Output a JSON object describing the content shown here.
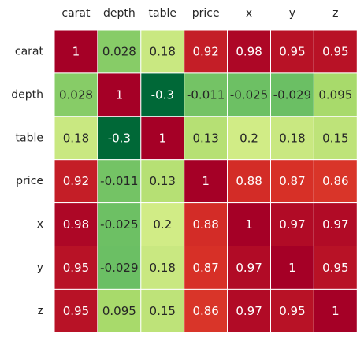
{
  "chart_data": {
    "type": "heatmap",
    "title": "",
    "xlabel": "",
    "ylabel": "",
    "x_categories": [
      "carat",
      "depth",
      "table",
      "price",
      "x",
      "y",
      "z"
    ],
    "y_categories": [
      "carat",
      "depth",
      "table",
      "price",
      "x",
      "y",
      "z"
    ],
    "x_axis_position": "top",
    "colormap": "RdYlGn_r",
    "vmin": -0.3,
    "vmax": 1,
    "values": [
      [
        1,
        0.028,
        0.18,
        0.92,
        0.98,
        0.95,
        0.95
      ],
      [
        0.028,
        1,
        -0.3,
        -0.011,
        -0.025,
        -0.029,
        0.095
      ],
      [
        0.18,
        -0.3,
        1,
        0.13,
        0.2,
        0.18,
        0.15
      ],
      [
        0.92,
        -0.011,
        0.13,
        1,
        0.88,
        0.87,
        0.86
      ],
      [
        0.98,
        -0.025,
        0.2,
        0.88,
        1,
        0.97,
        0.97
      ],
      [
        0.95,
        -0.029,
        0.18,
        0.87,
        0.97,
        1,
        0.95
      ],
      [
        0.95,
        0.095,
        0.15,
        0.86,
        0.97,
        0.95,
        1
      ]
    ],
    "annotations": [
      [
        "1",
        "0.028",
        "0.18",
        "0.92",
        "0.98",
        "0.95",
        "0.95"
      ],
      [
        "0.028",
        "1",
        "-0.3",
        "-0.011",
        "-0.025",
        "-0.029",
        "0.095"
      ],
      [
        "0.18",
        "-0.3",
        "1",
        "0.13",
        "0.2",
        "0.18",
        "0.15"
      ],
      [
        "0.92",
        "-0.011",
        "0.13",
        "1",
        "0.88",
        "0.87",
        "0.86"
      ],
      [
        "0.98",
        "-0.025",
        "0.2",
        "0.88",
        "1",
        "0.97",
        "0.97"
      ],
      [
        "0.95",
        "-0.029",
        "0.18",
        "0.87",
        "0.97",
        "1",
        "0.95"
      ],
      [
        "0.95",
        "0.095",
        "0.15",
        "0.86",
        "0.97",
        "0.95",
        "1"
      ]
    ],
    "cell_border_color": "#ffffff",
    "text_color_dark": "#262626",
    "text_color_light": "#ffffff"
  }
}
